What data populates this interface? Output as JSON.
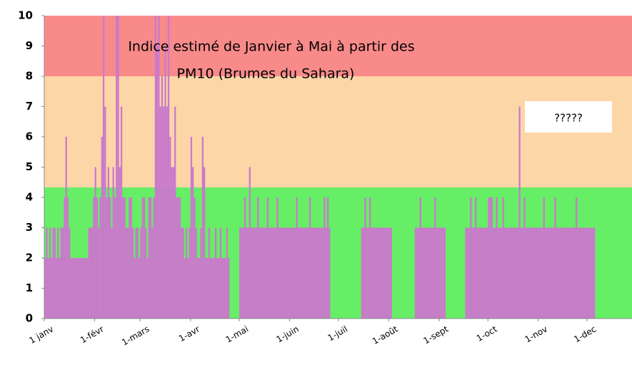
{
  "chart_data": {
    "type": "bar",
    "annotations": [
      "Indice estimé de Janvier à Mai à partir des",
      "PM10 (Brumes du Sahara)",
      "?????"
    ],
    "color": "#c97acb",
    "bands": [
      {
        "from": 0,
        "to": 4.33,
        "color": "#66ee66"
      },
      {
        "from": 4.33,
        "to": 8,
        "color": "#fdd6a8"
      },
      {
        "from": 8,
        "to": 10,
        "color": "#f98a8a"
      }
    ],
    "ylim": [
      0,
      10
    ],
    "yticks": [
      0,
      1,
      2,
      3,
      4,
      5,
      6,
      7,
      8,
      9,
      10
    ],
    "categories": [
      "1 janv",
      null,
      null,
      null,
      null,
      null,
      null,
      null,
      null,
      null,
      null,
      null,
      null,
      null,
      null,
      null,
      null,
      null,
      null,
      null,
      null,
      null,
      null,
      null,
      null,
      null,
      null,
      null,
      null,
      null,
      null,
      "1-févr",
      null,
      null,
      null,
      null,
      null,
      null,
      null,
      null,
      null,
      null,
      null,
      null,
      null,
      null,
      null,
      null,
      null,
      null,
      null,
      null,
      null,
      null,
      null,
      null,
      null,
      null,
      null,
      "1-mars",
      null,
      null,
      null,
      null,
      null,
      null,
      null,
      null,
      null,
      null,
      null,
      null,
      null,
      null,
      null,
      null,
      null,
      null,
      null,
      null,
      null,
      null,
      null,
      null,
      null,
      null,
      null,
      null,
      null,
      null,
      "1-avr",
      null,
      null,
      null,
      null,
      null,
      null,
      null,
      null,
      null,
      null,
      null,
      null,
      null,
      null,
      null,
      null,
      null,
      null,
      null,
      null,
      null,
      null,
      null,
      null,
      null,
      null,
      null,
      null,
      null,
      "1-mai",
      null,
      null,
      null,
      null,
      null,
      null,
      null,
      null,
      null,
      null,
      null,
      null,
      null,
      null,
      null,
      null,
      null,
      null,
      null,
      null,
      null,
      null,
      null,
      null,
      null,
      null,
      null,
      null,
      null,
      null,
      "1-juin",
      null,
      null,
      null,
      null,
      null,
      null,
      null,
      null,
      null,
      null,
      null,
      null,
      null,
      null,
      null,
      null,
      null,
      null,
      null,
      null,
      null,
      null,
      null,
      null,
      null,
      null,
      null,
      null,
      null,
      "1-juil",
      null,
      null,
      null,
      null,
      null,
      null,
      null,
      null,
      null,
      null,
      null,
      null,
      null,
      null,
      null,
      null,
      null,
      null,
      null,
      null,
      null,
      null,
      null,
      null,
      null,
      null,
      null,
      null,
      null,
      null,
      "1-août",
      null,
      null,
      null,
      null,
      null,
      null,
      null,
      null,
      null,
      null,
      null,
      null,
      null,
      null,
      null,
      null,
      null,
      null,
      null,
      null,
      null,
      null,
      null,
      null,
      null,
      null,
      null,
      null,
      null,
      null,
      "1-sept",
      null,
      null,
      null,
      null,
      null,
      null,
      null,
      null,
      null,
      null,
      null,
      null,
      null,
      null,
      null,
      null,
      null,
      null,
      null,
      null,
      null,
      null,
      null,
      null,
      null,
      null,
      null,
      null,
      null,
      "1-oct",
      null,
      null,
      null,
      null,
      null,
      null,
      null,
      null,
      null,
      null,
      null,
      null,
      null,
      null,
      null,
      null,
      null,
      null,
      null,
      null,
      null,
      null,
      null,
      null,
      null,
      null,
      null,
      null,
      null,
      null,
      "1-nov",
      null,
      null,
      null,
      null,
      null,
      null,
      null,
      null,
      null,
      null,
      null,
      null,
      null,
      null,
      null,
      null,
      null,
      null,
      null,
      null,
      null,
      null,
      null,
      null,
      null,
      null,
      null,
      null,
      null,
      "1-dec",
      null,
      null,
      null,
      null,
      null,
      null,
      null,
      null,
      null,
      null,
      null,
      null,
      null,
      null,
      null,
      null,
      null,
      null,
      null,
      null,
      null,
      null,
      null,
      null,
      null,
      null,
      null,
      null,
      null,
      null
    ],
    "values": [
      2,
      3,
      2,
      3,
      2,
      3,
      3,
      2,
      3,
      2,
      3,
      3,
      4,
      6,
      4,
      3,
      2,
      2,
      2,
      2,
      2,
      2,
      2,
      2,
      2,
      2,
      2,
      3,
      3,
      3,
      4,
      5,
      4,
      3,
      4,
      6,
      10,
      7,
      4,
      5,
      4,
      3,
      5,
      4,
      10,
      10,
      5,
      7,
      4,
      4,
      3,
      3,
      4,
      4,
      3,
      2,
      3,
      3,
      2,
      3,
      4,
      4,
      3,
      2,
      4,
      4,
      3,
      4,
      10,
      9,
      10,
      7,
      8,
      7,
      9,
      7,
      10,
      6,
      5,
      5,
      7,
      4,
      4,
      4,
      3,
      3,
      2,
      3,
      2,
      3,
      6,
      5,
      4,
      3,
      2,
      2,
      3,
      6,
      5,
      2,
      2,
      3,
      2,
      2,
      2,
      3,
      2,
      2,
      3,
      2,
      2,
      2,
      3,
      2,
      null,
      null,
      null,
      null,
      null,
      null,
      3,
      3,
      3,
      4,
      3,
      3,
      5,
      3,
      3,
      3,
      3,
      4,
      3,
      3,
      3,
      3,
      3,
      4,
      3,
      3,
      3,
      3,
      3,
      4,
      3,
      3,
      3,
      3,
      3,
      3,
      3,
      3,
      3,
      3,
      3,
      4,
      3,
      3,
      3,
      3,
      3,
      3,
      3,
      4,
      3,
      3,
      3,
      3,
      3,
      3,
      3,
      3,
      4,
      3,
      4,
      3,
      null,
      null,
      null,
      null,
      null,
      null,
      null,
      null,
      null,
      null,
      null,
      null,
      null,
      null,
      null,
      null,
      null,
      null,
      null,
      3,
      3,
      4,
      3,
      3,
      4,
      3,
      3,
      3,
      3,
      3,
      3,
      3,
      3,
      3,
      3,
      3,
      3,
      3,
      null,
      null,
      null,
      null,
      null,
      null,
      null,
      null,
      null,
      null,
      null,
      null,
      null,
      null,
      3,
      3,
      3,
      4,
      3,
      3,
      3,
      3,
      3,
      3,
      3,
      3,
      4,
      3,
      3,
      3,
      3,
      3,
      3,
      null,
      null,
      null,
      null,
      null,
      null,
      null,
      null,
      null,
      null,
      null,
      null,
      3,
      3,
      3,
      4,
      3,
      3,
      4,
      3,
      3,
      3,
      3,
      3,
      3,
      3,
      4,
      4,
      4,
      3,
      3,
      4,
      3,
      3,
      3,
      4,
      3,
      3,
      3,
      3,
      3,
      3,
      3,
      3,
      3,
      7,
      3,
      3,
      4,
      3,
      3,
      3,
      3,
      3,
      3,
      3,
      3,
      3,
      3,
      3,
      4,
      3,
      3,
      3,
      3,
      3,
      3,
      4,
      3,
      3,
      3,
      3,
      3,
      3,
      3,
      3,
      3,
      3,
      3,
      3,
      4,
      3,
      3,
      3,
      3,
      3,
      3,
      3,
      3,
      3,
      3,
      3,
      null,
      null,
      null,
      null,
      null,
      null,
      null,
      null,
      null,
      null,
      null,
      null,
      null,
      null,
      null,
      null,
      null,
      null,
      null,
      null,
      null,
      null,
      null,
      null,
      null,
      null
    ]
  }
}
